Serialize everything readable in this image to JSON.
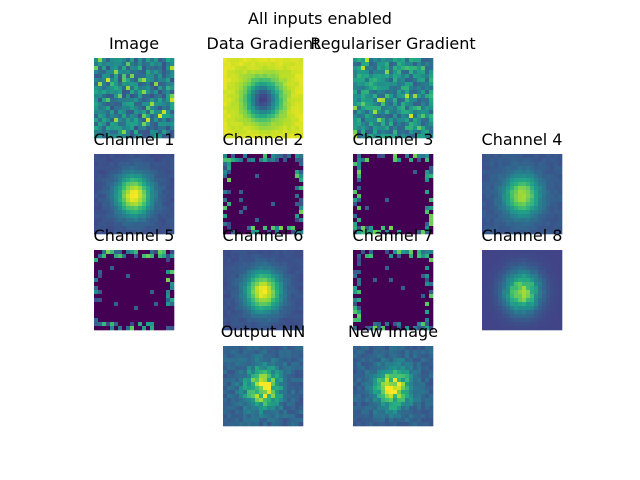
{
  "figure": {
    "suptitle": "All inputs enabled"
  },
  "chart_data": {
    "type": "heatmap",
    "title": "All inputs enabled",
    "colormap": "viridis",
    "grid": false,
    "panels": [
      {
        "title": "Image",
        "pattern": "noise-bright"
      },
      {
        "title": "Data Gradient",
        "pattern": "gradient-hole"
      },
      {
        "title": "Regulariser Gradient",
        "pattern": "noise-mid"
      },
      {
        "title": "Channel 1",
        "pattern": "blob-bright"
      },
      {
        "title": "Channel 2",
        "pattern": "dark-speckle"
      },
      {
        "title": "Channel 3",
        "pattern": "dark-speckle"
      },
      {
        "title": "Channel 4",
        "pattern": "blob-soft"
      },
      {
        "title": "Channel 5",
        "pattern": "dark-speckle"
      },
      {
        "title": "Channel 6",
        "pattern": "blob-bright"
      },
      {
        "title": "Channel 7",
        "pattern": "dark-speckle"
      },
      {
        "title": "Channel 8",
        "pattern": "blob-textured"
      },
      {
        "title": "Output NN",
        "pattern": "textured-blob"
      },
      {
        "title": "New Image",
        "pattern": "textured-blob"
      }
    ]
  }
}
